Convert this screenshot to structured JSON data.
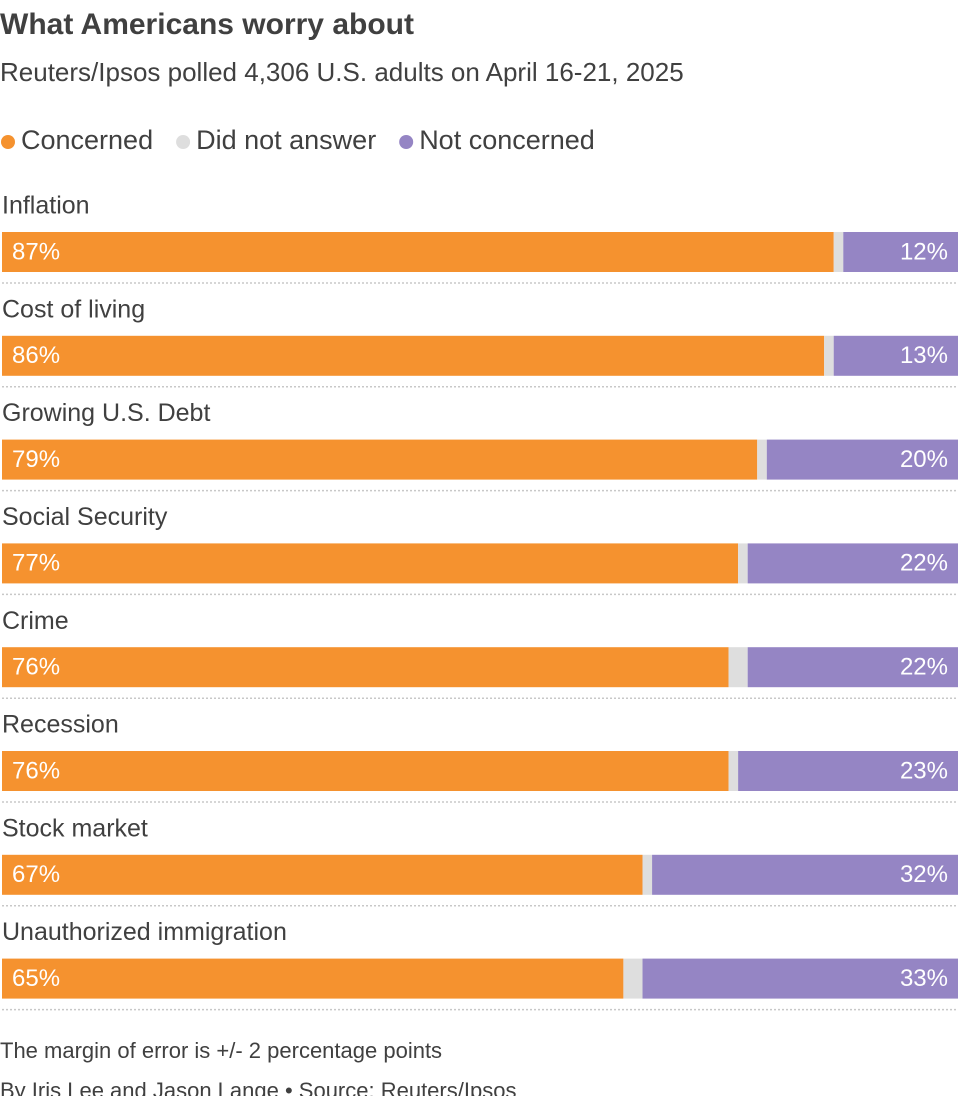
{
  "chart_data": {
    "type": "stacked-bar-horizontal",
    "title": "What Americans worry about",
    "subtitle": "Reuters/Ipsos polled 4,306 U.S. adults on April 16-21, 2025",
    "categories": [
      "Inflation",
      "Cost of living",
      "Growing U.S. Debt",
      "Social Security",
      "Crime",
      "Recession",
      "Stock market",
      "Unauthorized immigration"
    ],
    "series": [
      {
        "name": "Concerned",
        "color": "#f5922f",
        "values": [
          87,
          86,
          79,
          77,
          76,
          76,
          67,
          65
        ],
        "value_labels": [
          "87%",
          "86%",
          "79%",
          "77%",
          "76%",
          "76%",
          "67%",
          "65%"
        ]
      },
      {
        "name": "Did not answer",
        "color": "#dedede",
        "values": [
          1,
          1,
          1,
          1,
          2,
          1,
          1,
          2
        ]
      },
      {
        "name": "Not concerned",
        "color": "#9585c4",
        "values": [
          12,
          13,
          20,
          22,
          22,
          23,
          32,
          33
        ],
        "value_labels": [
          "12%",
          "13%",
          "20%",
          "22%",
          "22%",
          "23%",
          "32%",
          "33%"
        ]
      }
    ],
    "xlim": [
      0,
      100
    ],
    "notes": [
      "The margin of error is +/- 2 percentage points",
      "By Iris Lee and Jason Lange • Source: Reuters/Ipsos"
    ]
  }
}
